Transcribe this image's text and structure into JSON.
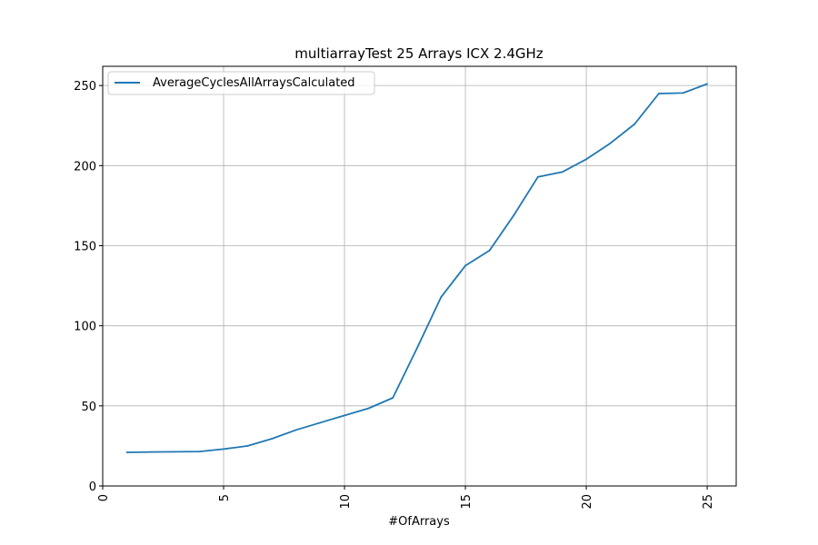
{
  "chart_data": {
    "type": "line",
    "title": "multiarrayTest 25 Arrays ICX 2.4GHz",
    "xlabel": "#OfArrays",
    "ylabel": "",
    "xlim": [
      0,
      26.2
    ],
    "ylim": [
      0,
      262
    ],
    "x_ticks": [
      0,
      5,
      10,
      15,
      20,
      25
    ],
    "y_ticks": [
      0,
      50,
      100,
      150,
      200,
      250
    ],
    "x_tick_rotation": 90,
    "grid": true,
    "legend_placement": "top-left",
    "series": [
      {
        "name": "AverageCyclesAllArraysCalculated",
        "color": "#1f77b4",
        "x": [
          1,
          2,
          3,
          4,
          5,
          6,
          7,
          8,
          9,
          10,
          11,
          12,
          13,
          14,
          15,
          16,
          17,
          18,
          19,
          20,
          21,
          22,
          23,
          24,
          25
        ],
        "y": [
          21,
          21.2,
          21.3,
          21.5,
          23,
          25,
          29.5,
          35,
          39.5,
          44,
          48.5,
          55,
          86,
          118,
          137.5,
          147,
          169,
          193,
          196,
          204,
          214,
          226,
          245,
          245.3,
          251
        ]
      }
    ]
  }
}
